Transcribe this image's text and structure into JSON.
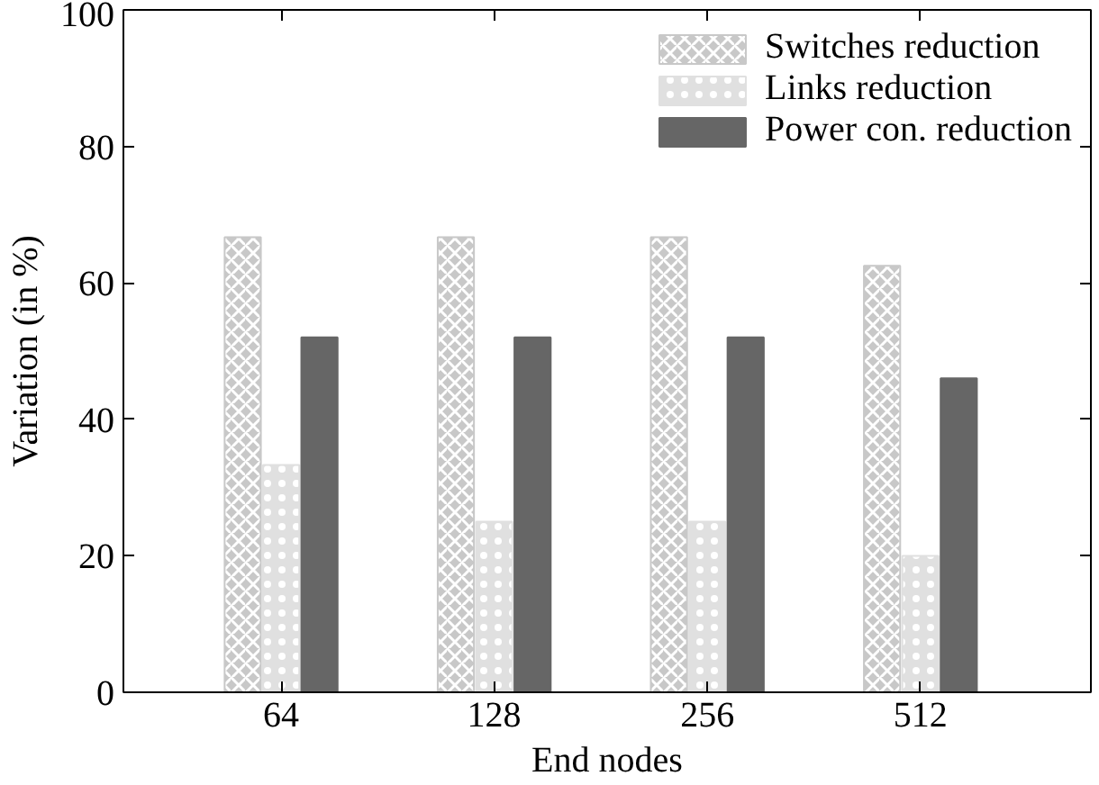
{
  "chart_data": {
    "type": "bar",
    "xlabel": "End nodes",
    "ylabel": "Variation (in %)",
    "categories": [
      "64",
      "128",
      "256",
      "512"
    ],
    "series": [
      {
        "name": "Switches reduction",
        "color": "#c8c8c8",
        "values": [
          66.7,
          66.7,
          66.7,
          62.5
        ]
      },
      {
        "name": "Links reduction",
        "color": "#e0e0e0",
        "values": [
          33.3,
          25,
          25,
          20
        ]
      },
      {
        "name": "Power con. reduction",
        "color": "#666666",
        "values": [
          52,
          52,
          52,
          46
        ]
      }
    ],
    "ylim": [
      0,
      100
    ],
    "yticks": [
      0,
      20,
      40,
      60,
      80,
      100
    ],
    "grid": false,
    "legend": "top right"
  }
}
